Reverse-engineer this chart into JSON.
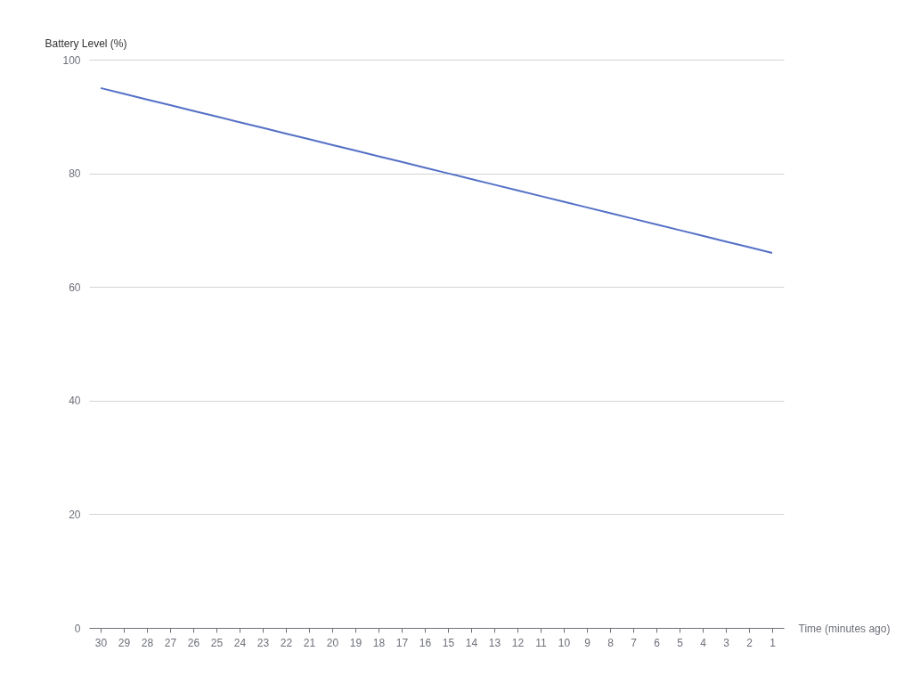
{
  "chart_data": {
    "type": "line",
    "xlabel": "Time (minutes ago)",
    "ylabel": "Battery Level (%)",
    "categories": [
      "30",
      "29",
      "28",
      "27",
      "26",
      "25",
      "24",
      "23",
      "22",
      "21",
      "20",
      "19",
      "18",
      "17",
      "16",
      "15",
      "14",
      "13",
      "12",
      "11",
      "10",
      "9",
      "8",
      "7",
      "6",
      "5",
      "4",
      "3",
      "2",
      "1"
    ],
    "series": [
      {
        "color": "#5470c6",
        "values": [
          95,
          94,
          93,
          92,
          91,
          90,
          89,
          88,
          87,
          86,
          85,
          84,
          83,
          82,
          81,
          80,
          79,
          78,
          77,
          76,
          75,
          74,
          73,
          72,
          71,
          70,
          69,
          68,
          67,
          66
        ]
      }
    ],
    "ylim": [
      0,
      100
    ],
    "yticks": [
      0,
      20,
      40,
      60,
      80,
      100
    ],
    "grid": "y"
  }
}
